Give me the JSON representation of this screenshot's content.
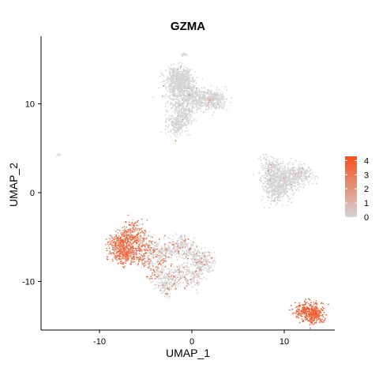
{
  "chart_data": {
    "type": "scatter",
    "title": "GZMA",
    "xlabel": "UMAP_1",
    "ylabel": "UMAP_2",
    "xlim": [
      -16.5,
      15.5
    ],
    "ylim": [
      -15.5,
      17.5
    ],
    "xticks": [
      -10,
      0,
      10
    ],
    "yticks": [
      10,
      0,
      -10
    ],
    "grid": false,
    "legend_position": "right",
    "color_low": "#d3d3d3",
    "color_high": "#f4511e",
    "legend": {
      "ticks": [
        4,
        3,
        2,
        1,
        0
      ],
      "min": 0,
      "max": 4.3
    },
    "clusters": [
      {
        "name": "top-cluster",
        "expression": "low",
        "points": [
          [
            -1.8,
            12.5
          ],
          [
            -1.5,
            13.0
          ],
          [
            -1.0,
            12.6
          ],
          [
            -0.5,
            12.0
          ],
          [
            -2.0,
            11.2
          ],
          [
            -1.2,
            11.6
          ],
          [
            -0.2,
            11.0
          ],
          [
            0.6,
            10.8
          ],
          [
            1.3,
            10.4
          ],
          [
            2.0,
            10.6
          ],
          [
            2.5,
            10.3
          ],
          [
            -1.4,
            10.0
          ],
          [
            -0.8,
            9.3
          ],
          [
            -1.0,
            8.4
          ],
          [
            -1.5,
            7.6
          ],
          [
            -1.8,
            7.7
          ],
          [
            0.0,
            10.4
          ],
          [
            2.8,
            10.4
          ],
          [
            -1.9,
            13.1
          ],
          [
            -1.0,
            13.2
          ]
        ]
      },
      {
        "name": "top-outlier",
        "expression": "low",
        "points": [
          [
            -0.9,
            15.5
          ],
          [
            -0.8,
            15.6
          ]
        ]
      },
      {
        "name": "left-outlier",
        "expression": "low",
        "points": [
          [
            -14.5,
            4.2
          ]
        ]
      },
      {
        "name": "right-mid-cluster",
        "expression": "low",
        "points": [
          [
            8.5,
            3.0
          ],
          [
            9.0,
            2.4
          ],
          [
            8.6,
            1.6
          ],
          [
            9.4,
            1.2
          ],
          [
            10.0,
            1.9
          ],
          [
            10.8,
            2.0
          ],
          [
            11.6,
            2.2
          ],
          [
            12.1,
            1.9
          ],
          [
            9.6,
            0.3
          ],
          [
            9.1,
            -0.2
          ],
          [
            8.7,
            0.6
          ],
          [
            10.6,
            1.0
          ]
        ]
      },
      {
        "name": "lower-cluster",
        "expression": "mixed",
        "points": [
          [
            -7.3,
            -6.0
          ],
          [
            -6.7,
            -5.0
          ],
          [
            -6.2,
            -4.2
          ],
          [
            -5.4,
            -5.6
          ],
          [
            -4.4,
            -6.2
          ],
          [
            -3.5,
            -7.2
          ],
          [
            -2.3,
            -6.4
          ],
          [
            -1.2,
            -5.8
          ],
          [
            -0.6,
            -6.6
          ],
          [
            0.5,
            -7.3
          ],
          [
            1.4,
            -7.5
          ],
          [
            1.0,
            -8.5
          ],
          [
            0.0,
            -9.6
          ],
          [
            -1.3,
            -9.0
          ],
          [
            -2.2,
            -9.8
          ],
          [
            -2.9,
            -10.6
          ],
          [
            -3.8,
            -8.9
          ],
          [
            -5.1,
            -7.6
          ],
          [
            -6.3,
            -6.9
          ],
          [
            -7.6,
            -7.0
          ],
          [
            -8.1,
            -6.5
          ],
          [
            -7.9,
            -5.4
          ],
          [
            -6.9,
            -6.8
          ]
        ]
      },
      {
        "name": "bottom-right-cluster",
        "expression": "high",
        "points": [
          [
            12.2,
            -13.3
          ],
          [
            12.7,
            -13.5
          ],
          [
            13.1,
            -13.6
          ],
          [
            13.4,
            -13.7
          ]
        ]
      }
    ]
  }
}
